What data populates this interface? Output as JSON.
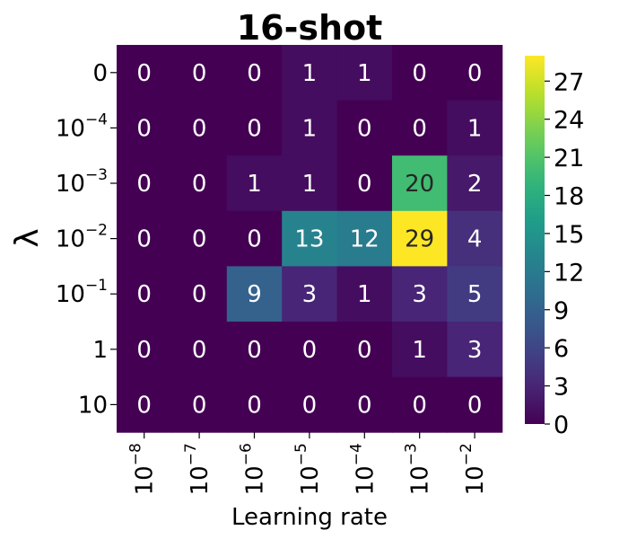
{
  "chart_data": {
    "type": "heatmap",
    "title": "16-shot",
    "xlabel": "Learning rate",
    "ylabel": "λ",
    "x_ticks": [
      {
        "base": "10",
        "exp": "−8"
      },
      {
        "base": "10",
        "exp": "−7"
      },
      {
        "base": "10",
        "exp": "−6"
      },
      {
        "base": "10",
        "exp": "−5"
      },
      {
        "base": "10",
        "exp": "−4"
      },
      {
        "base": "10",
        "exp": "−3"
      },
      {
        "base": "10",
        "exp": "−2"
      }
    ],
    "y_ticks": [
      {
        "base": "0",
        "exp": ""
      },
      {
        "base": "10",
        "exp": "−4"
      },
      {
        "base": "10",
        "exp": "−3"
      },
      {
        "base": "10",
        "exp": "−2"
      },
      {
        "base": "10",
        "exp": "−1"
      },
      {
        "base": "1",
        "exp": ""
      },
      {
        "base": "10",
        "exp": ""
      }
    ],
    "values": [
      [
        0,
        0,
        0,
        1,
        1,
        0,
        0
      ],
      [
        0,
        0,
        0,
        1,
        0,
        0,
        1
      ],
      [
        0,
        0,
        1,
        1,
        0,
        20,
        2
      ],
      [
        0,
        0,
        0,
        13,
        12,
        29,
        4
      ],
      [
        0,
        0,
        9,
        3,
        1,
        3,
        5
      ],
      [
        0,
        0,
        0,
        0,
        0,
        1,
        3
      ],
      [
        0,
        0,
        0,
        0,
        0,
        0,
        0
      ]
    ],
    "colorbar": {
      "colormap": "viridis",
      "range": [
        0,
        29
      ],
      "ticks": [
        0,
        3,
        6,
        9,
        12,
        15,
        18,
        21,
        24,
        27
      ]
    }
  }
}
